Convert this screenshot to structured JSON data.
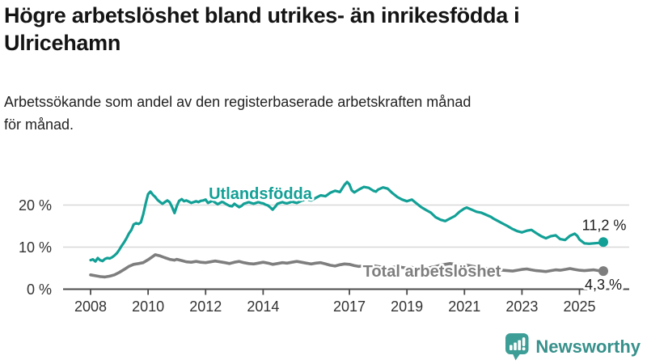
{
  "title_lines": [
    "Högre arbetslöshet bland utrikes- än inrikesfödda i",
    "Ulricehamn"
  ],
  "subtitle_lines": [
    "Arbetssökande som andel av den registerbaserade arbetskraften månad",
    "för månad."
  ],
  "logo": {
    "text": "Newsworthy"
  },
  "colors": {
    "foreign_line": "#12A096",
    "total_line": "#7E7E7E",
    "grid": "#d8d8d8",
    "axis": "#4a4a4a",
    "logo_icon": "#3D9E97",
    "logo_text": "#37908B"
  },
  "chart_data": {
    "type": "line",
    "title": "Arbetssökande som andel av den registerbaserade arbetskraften månad för månad",
    "xlabel": "",
    "ylabel": "",
    "xlim": [
      2007.5,
      2026.3
    ],
    "ylim": [
      0,
      27
    ],
    "grid": true,
    "legend_position": "inline-labels",
    "x_ticks": [
      2008,
      2010,
      2012,
      2014,
      2017,
      2019,
      2021,
      2023,
      2025
    ],
    "y_ticks": [
      {
        "value": 0,
        "label": "0 %"
      },
      {
        "value": 10,
        "label": "10 %"
      },
      {
        "value": 20,
        "label": "20 %"
      }
    ],
    "series": [
      {
        "name": "Utlandsfödda",
        "color": "#12A096",
        "end_label": "11,2 %",
        "end_value": 11.2,
        "points": [
          [
            2008.0,
            6.9
          ],
          [
            2008.08,
            7.1
          ],
          [
            2008.17,
            6.6
          ],
          [
            2008.25,
            7.4
          ],
          [
            2008.33,
            6.9
          ],
          [
            2008.42,
            6.7
          ],
          [
            2008.5,
            7.2
          ],
          [
            2008.58,
            7.4
          ],
          [
            2008.67,
            7.3
          ],
          [
            2008.75,
            7.6
          ],
          [
            2008.83,
            8.0
          ],
          [
            2008.92,
            8.6
          ],
          [
            2009.0,
            9.4
          ],
          [
            2009.08,
            10.3
          ],
          [
            2009.17,
            11.2
          ],
          [
            2009.25,
            12.1
          ],
          [
            2009.33,
            13.2
          ],
          [
            2009.42,
            14.1
          ],
          [
            2009.5,
            15.4
          ],
          [
            2009.58,
            15.7
          ],
          [
            2009.67,
            15.5
          ],
          [
            2009.75,
            15.9
          ],
          [
            2009.83,
            17.8
          ],
          [
            2009.92,
            20.5
          ],
          [
            2010.0,
            22.6
          ],
          [
            2010.08,
            23.2
          ],
          [
            2010.17,
            22.4
          ],
          [
            2010.25,
            21.9
          ],
          [
            2010.33,
            21.2
          ],
          [
            2010.42,
            20.7
          ],
          [
            2010.5,
            20.3
          ],
          [
            2010.58,
            20.7
          ],
          [
            2010.67,
            21.1
          ],
          [
            2010.75,
            20.7
          ],
          [
            2010.83,
            19.6
          ],
          [
            2010.92,
            18.1
          ],
          [
            2011.0,
            19.8
          ],
          [
            2011.08,
            21.0
          ],
          [
            2011.17,
            21.4
          ],
          [
            2011.25,
            20.9
          ],
          [
            2011.33,
            21.1
          ],
          [
            2011.42,
            20.8
          ],
          [
            2011.5,
            20.5
          ],
          [
            2011.58,
            20.7
          ],
          [
            2011.67,
            20.9
          ],
          [
            2011.75,
            20.7
          ],
          [
            2011.83,
            21.0
          ],
          [
            2011.92,
            21.1
          ],
          [
            2012.0,
            21.3
          ],
          [
            2012.08,
            20.5
          ],
          [
            2012.17,
            20.8
          ],
          [
            2012.25,
            21.0
          ],
          [
            2012.33,
            20.6
          ],
          [
            2012.42,
            20.2
          ],
          [
            2012.5,
            20.5
          ],
          [
            2012.58,
            20.8
          ],
          [
            2012.67,
            20.4
          ],
          [
            2012.75,
            20.1
          ],
          [
            2012.83,
            19.8
          ],
          [
            2012.92,
            19.7
          ],
          [
            2013.0,
            20.3
          ],
          [
            2013.08,
            19.9
          ],
          [
            2013.17,
            19.5
          ],
          [
            2013.25,
            19.8
          ],
          [
            2013.33,
            20.3
          ],
          [
            2013.42,
            20.5
          ],
          [
            2013.5,
            20.7
          ],
          [
            2013.58,
            20.5
          ],
          [
            2013.67,
            20.3
          ],
          [
            2013.75,
            20.5
          ],
          [
            2013.83,
            20.7
          ],
          [
            2013.92,
            20.5
          ],
          [
            2014.0,
            20.4
          ],
          [
            2014.08,
            20.1
          ],
          [
            2014.17,
            19.9
          ],
          [
            2014.25,
            19.4
          ],
          [
            2014.33,
            18.9
          ],
          [
            2014.42,
            19.6
          ],
          [
            2014.5,
            20.3
          ],
          [
            2014.58,
            20.5
          ],
          [
            2014.67,
            20.7
          ],
          [
            2014.75,
            20.5
          ],
          [
            2014.83,
            20.4
          ],
          [
            2014.92,
            20.6
          ],
          [
            2015.0,
            20.8
          ],
          [
            2015.17,
            20.5
          ],
          [
            2015.33,
            21.0
          ],
          [
            2015.5,
            21.4
          ],
          [
            2015.67,
            21.1
          ],
          [
            2015.83,
            21.7
          ],
          [
            2016.0,
            22.3
          ],
          [
            2016.17,
            22.1
          ],
          [
            2016.33,
            22.9
          ],
          [
            2016.5,
            23.4
          ],
          [
            2016.67,
            23.1
          ],
          [
            2016.83,
            24.8
          ],
          [
            2016.92,
            25.5
          ],
          [
            2017.0,
            24.9
          ],
          [
            2017.08,
            23.5
          ],
          [
            2017.17,
            23.0
          ],
          [
            2017.33,
            23.7
          ],
          [
            2017.5,
            24.3
          ],
          [
            2017.67,
            24.1
          ],
          [
            2017.83,
            23.4
          ],
          [
            2017.92,
            23.2
          ],
          [
            2018.0,
            23.7
          ],
          [
            2018.17,
            24.2
          ],
          [
            2018.33,
            23.9
          ],
          [
            2018.5,
            22.8
          ],
          [
            2018.67,
            21.9
          ],
          [
            2018.83,
            21.3
          ],
          [
            2019.0,
            20.9
          ],
          [
            2019.17,
            21.3
          ],
          [
            2019.33,
            20.4
          ],
          [
            2019.5,
            19.5
          ],
          [
            2019.67,
            18.8
          ],
          [
            2019.83,
            18.2
          ],
          [
            2020.0,
            17.1
          ],
          [
            2020.17,
            16.5
          ],
          [
            2020.33,
            16.2
          ],
          [
            2020.5,
            16.8
          ],
          [
            2020.67,
            17.4
          ],
          [
            2020.83,
            18.4
          ],
          [
            2021.0,
            19.2
          ],
          [
            2021.08,
            19.4
          ],
          [
            2021.25,
            18.9
          ],
          [
            2021.42,
            18.4
          ],
          [
            2021.58,
            18.2
          ],
          [
            2021.75,
            17.7
          ],
          [
            2021.92,
            17.2
          ],
          [
            2022.0,
            16.8
          ],
          [
            2022.17,
            16.2
          ],
          [
            2022.33,
            15.6
          ],
          [
            2022.5,
            15.0
          ],
          [
            2022.67,
            14.3
          ],
          [
            2022.83,
            13.8
          ],
          [
            2023.0,
            13.5
          ],
          [
            2023.17,
            13.9
          ],
          [
            2023.33,
            14.1
          ],
          [
            2023.5,
            13.3
          ],
          [
            2023.67,
            12.6
          ],
          [
            2023.83,
            12.1
          ],
          [
            2024.0,
            12.6
          ],
          [
            2024.17,
            12.8
          ],
          [
            2024.33,
            11.9
          ],
          [
            2024.5,
            11.7
          ],
          [
            2024.67,
            12.7
          ],
          [
            2024.83,
            13.2
          ],
          [
            2024.92,
            12.7
          ],
          [
            2025.0,
            11.8
          ],
          [
            2025.17,
            10.9
          ],
          [
            2025.33,
            10.8
          ],
          [
            2025.5,
            10.9
          ],
          [
            2025.67,
            11.0
          ],
          [
            2025.83,
            11.2
          ]
        ]
      },
      {
        "name": "Total arbetslöshet",
        "color": "#7E7E7E",
        "end_label": "4,3 %",
        "end_value": 4.3,
        "points": [
          [
            2008.0,
            3.4
          ],
          [
            2008.17,
            3.2
          ],
          [
            2008.33,
            3.0
          ],
          [
            2008.5,
            2.9
          ],
          [
            2008.67,
            3.1
          ],
          [
            2008.83,
            3.4
          ],
          [
            2009.0,
            4.0
          ],
          [
            2009.17,
            4.7
          ],
          [
            2009.33,
            5.4
          ],
          [
            2009.5,
            5.9
          ],
          [
            2009.67,
            6.1
          ],
          [
            2009.83,
            6.3
          ],
          [
            2010.0,
            7.0
          ],
          [
            2010.17,
            7.8
          ],
          [
            2010.25,
            8.2
          ],
          [
            2010.42,
            7.9
          ],
          [
            2010.58,
            7.5
          ],
          [
            2010.75,
            7.1
          ],
          [
            2010.92,
            6.9
          ],
          [
            2011.0,
            7.1
          ],
          [
            2011.17,
            6.8
          ],
          [
            2011.33,
            6.5
          ],
          [
            2011.5,
            6.4
          ],
          [
            2011.67,
            6.6
          ],
          [
            2011.83,
            6.4
          ],
          [
            2012.0,
            6.3
          ],
          [
            2012.17,
            6.5
          ],
          [
            2012.33,
            6.7
          ],
          [
            2012.5,
            6.5
          ],
          [
            2012.67,
            6.3
          ],
          [
            2012.83,
            6.1
          ],
          [
            2013.0,
            6.4
          ],
          [
            2013.17,
            6.6
          ],
          [
            2013.33,
            6.3
          ],
          [
            2013.5,
            6.1
          ],
          [
            2013.67,
            6.0
          ],
          [
            2013.83,
            6.2
          ],
          [
            2014.0,
            6.4
          ],
          [
            2014.17,
            6.2
          ],
          [
            2014.33,
            5.9
          ],
          [
            2014.5,
            6.1
          ],
          [
            2014.67,
            6.3
          ],
          [
            2014.83,
            6.2
          ],
          [
            2015.0,
            6.4
          ],
          [
            2015.17,
            6.6
          ],
          [
            2015.33,
            6.4
          ],
          [
            2015.5,
            6.2
          ],
          [
            2015.67,
            6.0
          ],
          [
            2015.83,
            6.2
          ],
          [
            2016.0,
            6.3
          ],
          [
            2016.17,
            6.0
          ],
          [
            2016.33,
            5.7
          ],
          [
            2016.5,
            5.5
          ],
          [
            2016.67,
            5.8
          ],
          [
            2016.83,
            6.0
          ],
          [
            2017.0,
            5.9
          ],
          [
            2017.17,
            5.6
          ],
          [
            2017.33,
            5.4
          ],
          [
            2017.5,
            5.6
          ],
          [
            2017.67,
            5.8
          ],
          [
            2017.83,
            5.6
          ],
          [
            2018.0,
            5.4
          ],
          [
            2018.17,
            5.2
          ],
          [
            2018.33,
            5.0
          ],
          [
            2018.5,
            5.2
          ],
          [
            2018.67,
            5.4
          ],
          [
            2018.83,
            5.2
          ],
          [
            2019.0,
            5.0
          ],
          [
            2019.17,
            5.2
          ],
          [
            2019.33,
            5.0
          ],
          [
            2019.5,
            4.8
          ],
          [
            2019.67,
            5.0
          ],
          [
            2019.83,
            5.2
          ],
          [
            2020.0,
            5.4
          ],
          [
            2020.17,
            5.7
          ],
          [
            2020.33,
            5.9
          ],
          [
            2020.5,
            6.1
          ],
          [
            2020.67,
            5.9
          ],
          [
            2020.83,
            5.7
          ],
          [
            2021.0,
            5.8
          ],
          [
            2021.17,
            5.6
          ],
          [
            2021.33,
            5.4
          ],
          [
            2021.5,
            5.2
          ],
          [
            2021.67,
            5.0
          ],
          [
            2021.83,
            4.9
          ],
          [
            2022.0,
            4.8
          ],
          [
            2022.17,
            4.6
          ],
          [
            2022.33,
            4.5
          ],
          [
            2022.5,
            4.4
          ],
          [
            2022.67,
            4.3
          ],
          [
            2022.83,
            4.5
          ],
          [
            2023.0,
            4.7
          ],
          [
            2023.17,
            4.8
          ],
          [
            2023.33,
            4.6
          ],
          [
            2023.5,
            4.4
          ],
          [
            2023.67,
            4.3
          ],
          [
            2023.83,
            4.2
          ],
          [
            2024.0,
            4.4
          ],
          [
            2024.17,
            4.6
          ],
          [
            2024.33,
            4.5
          ],
          [
            2024.5,
            4.7
          ],
          [
            2024.67,
            4.9
          ],
          [
            2024.83,
            4.7
          ],
          [
            2025.0,
            4.5
          ],
          [
            2025.17,
            4.4
          ],
          [
            2025.33,
            4.5
          ],
          [
            2025.5,
            4.6
          ],
          [
            2025.67,
            4.4
          ],
          [
            2025.83,
            4.3
          ]
        ]
      }
    ]
  }
}
